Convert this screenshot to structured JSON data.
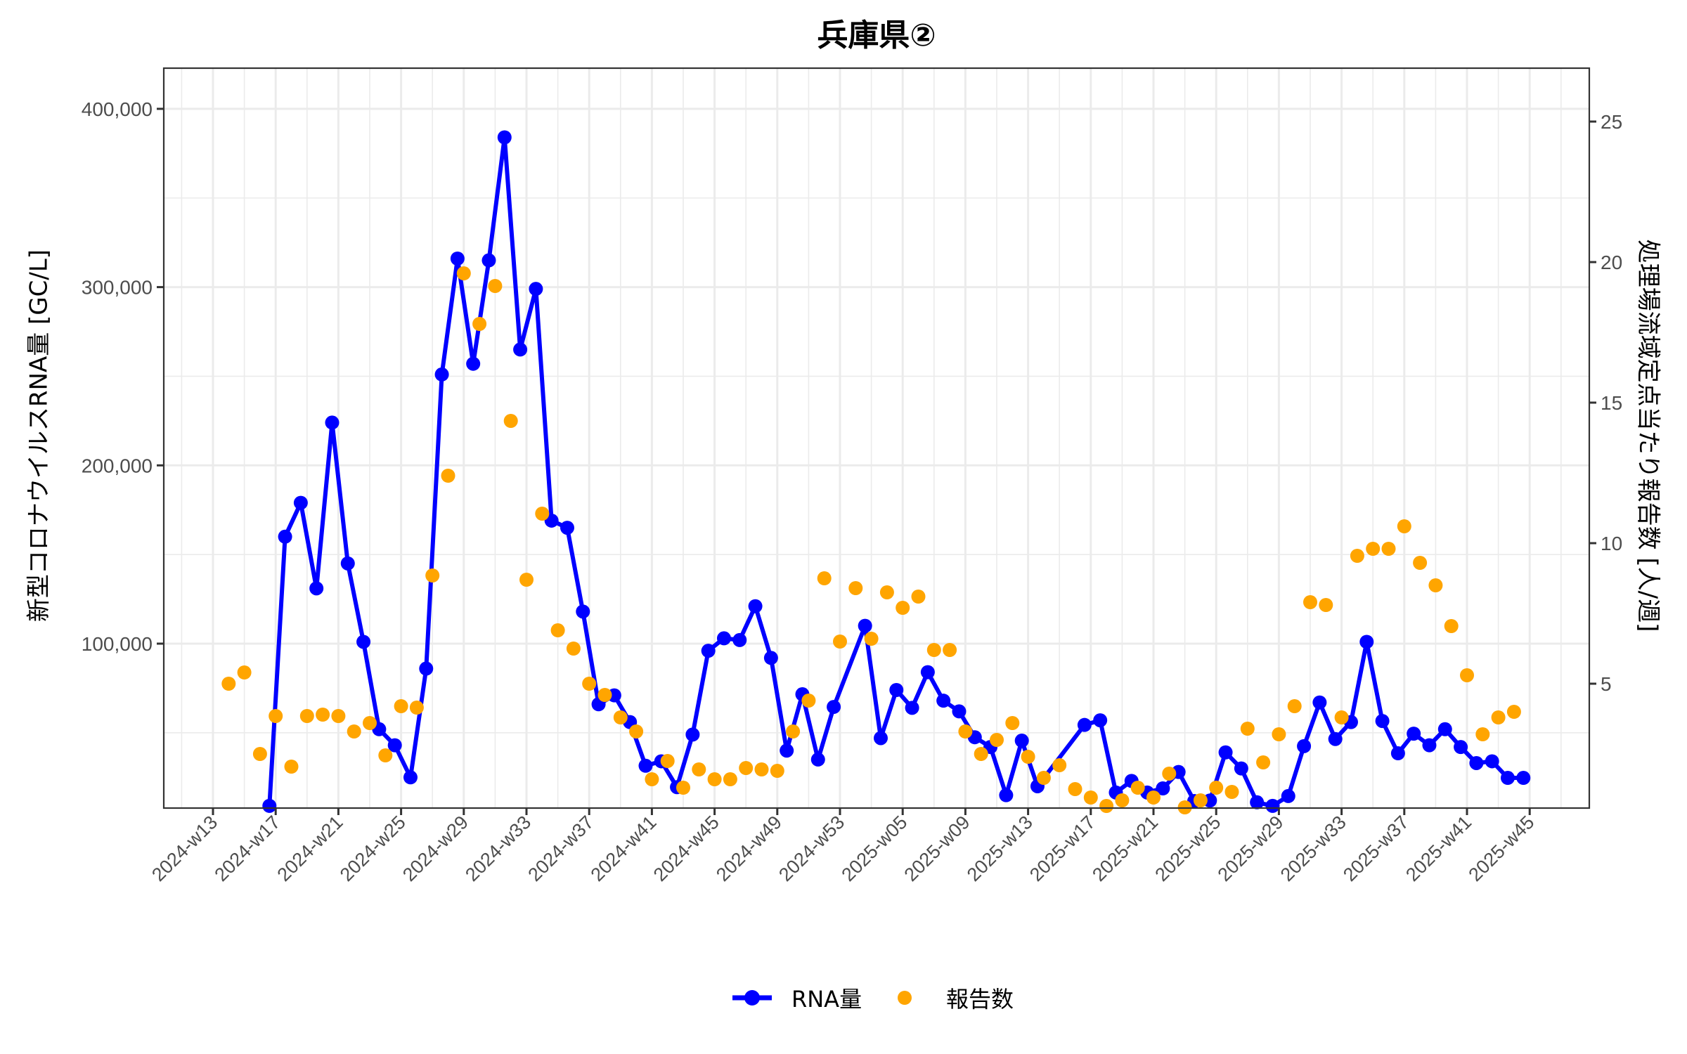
{
  "chart": {
    "title": "兵庫県②",
    "ylabel_left": "新型コロナウイルスRNA量 [GC/L]",
    "ylabel_right": "処理場流域定点当たり報告数 [人/週]",
    "legend": [
      {
        "label": "RNA量",
        "color": "#0000FF",
        "style": "line+point"
      },
      {
        "label": "報告数",
        "color": "#FFA500",
        "style": "point"
      }
    ]
  },
  "colors": {
    "rna": "#0000FF",
    "reports": "#FFA500",
    "grid": "#EBEBEB",
    "axis": "#333333",
    "tick_text": "#4D4D4D"
  },
  "chart_data": {
    "type": "line",
    "title": "兵庫県②",
    "xlabel": "",
    "ylabel": "新型コロナウイルスRNA量 [GC/L]",
    "ylabel_secondary": "処理場流域定点当たり報告数 [人/週]",
    "ylim": [
      8000,
      420000
    ],
    "ylim_secondary": [
      0.6,
      26.5
    ],
    "grid": true,
    "legend_position": "bottom",
    "x_tick_labels": [
      "2024-w13",
      "2024-w17",
      "2024-w21",
      "2024-w25",
      "2024-w29",
      "2024-w33",
      "2024-w37",
      "2024-w41",
      "2024-w45",
      "2024-w49",
      "2024-w53",
      "2025-w05",
      "2025-w09",
      "2025-w13",
      "2025-w17",
      "2025-w21",
      "2025-w25",
      "2025-w29",
      "2025-w33",
      "2025-w37",
      "2025-w41",
      "2025-w45"
    ],
    "y_ticks_left": [
      "100,000",
      "200,000",
      "300,000",
      "400,000"
    ],
    "y_ticks_left_values": [
      100000,
      200000,
      300000,
      400000
    ],
    "y_ticks_right": [
      "5",
      "10",
      "15",
      "20",
      "25"
    ],
    "y_ticks_right_values": [
      5,
      10,
      15,
      20,
      25
    ],
    "x_index_note": "x is week index: 0 = 2024-w13, 40 = 2024-w53, 44 = 2025-w05, 84 = 2025-w45",
    "series": [
      {
        "name": "RNA量",
        "axis": "left",
        "type": "line+point",
        "x": [
          3.6,
          4.6,
          5.6,
          6.6,
          7.6,
          8.6,
          9.6,
          10.6,
          11.6,
          12.6,
          13.6,
          14.6,
          15.6,
          16.6,
          17.6,
          18.6,
          19.6,
          20.6,
          21.6,
          22.6,
          23.6,
          24.6,
          25.6,
          26.6,
          27.6,
          28.6,
          29.6,
          30.6,
          31.6,
          32.6,
          33.6,
          34.6,
          35.6,
          36.6,
          37.6,
          38.6,
          39.6,
          41.6,
          42.6,
          43.6,
          44.6,
          45.6,
          46.6,
          47.6,
          48.6,
          49.6,
          50.6,
          51.6,
          52.6,
          55.6,
          56.6,
          57.6,
          58.6,
          59.6,
          60.6,
          61.6,
          62.6,
          63.6,
          64.6,
          65.6,
          66.6,
          67.6,
          68.6,
          69.6,
          70.6,
          71.6,
          72.6,
          73.6,
          74.6,
          75.6,
          76.6,
          77.6,
          78.6,
          79.6,
          80.6,
          81.6,
          82.6,
          83.6
        ],
        "values": [
          9000,
          160000,
          179000,
          131000,
          224000,
          145000,
          101000,
          52000,
          43000,
          25000,
          86000,
          251000,
          316000,
          257000,
          315000,
          384000,
          265000,
          299000,
          169000,
          165000,
          118000,
          66000,
          71000,
          56000,
          31500,
          34000,
          19500,
          49000,
          96000,
          103000,
          102000,
          121000,
          92000,
          40000,
          71600,
          35000,
          64500,
          110000,
          47000,
          74000,
          64000,
          84000,
          68000,
          62000,
          47500,
          42000,
          15000,
          45600,
          20000,
          54400,
          57000,
          16500,
          23000,
          16500,
          18800,
          28000,
          11700,
          12000,
          39000,
          30000,
          11000,
          9000,
          14500,
          42500,
          67000,
          46500,
          56000,
          101000,
          56600,
          38500,
          49500,
          43000,
          52000,
          42000,
          33000,
          34000,
          24700,
          24700
        ]
      },
      {
        "name": "報告数",
        "axis": "right",
        "type": "point",
        "x": [
          1,
          2,
          3,
          4,
          5,
          6,
          7,
          8,
          9,
          10,
          11,
          12,
          13,
          14,
          15,
          16,
          17,
          18,
          19,
          20,
          21,
          22,
          23,
          24,
          25,
          26,
          27,
          28,
          29,
          30,
          31,
          32,
          33,
          34,
          35,
          36,
          37,
          38,
          39,
          40,
          41,
          42,
          43,
          44,
          45,
          46,
          47,
          48,
          49,
          50,
          51,
          52,
          53,
          54,
          55,
          56,
          57,
          58,
          59,
          60,
          61,
          62,
          63,
          64,
          65,
          66,
          67,
          68,
          69,
          70,
          71,
          72,
          73,
          74,
          75,
          76,
          77,
          78,
          79,
          80,
          81,
          82,
          83
        ],
        "values": [
          5.0,
          5.4,
          2.5,
          3.85,
          2.05,
          3.85,
          3.9,
          3.85,
          3.3,
          3.6,
          2.45,
          4.2,
          4.15,
          8.85,
          12.4,
          19.6,
          17.8,
          19.15,
          14.35,
          8.7,
          11.05,
          6.9,
          6.25,
          5.0,
          4.6,
          3.8,
          3.3,
          1.6,
          2.25,
          1.3,
          1.95,
          1.6,
          1.6,
          2.0,
          1.95,
          1.9,
          3.3,
          4.4,
          8.75,
          6.5,
          8.4,
          6.6,
          8.25,
          7.7,
          8.1,
          6.2,
          6.2,
          3.3,
          2.5,
          3.0,
          3.6,
          2.4,
          1.65,
          2.1,
          1.25,
          0.95,
          0.65,
          0.85,
          1.3,
          0.95,
          1.8,
          0.6,
          0.85,
          1.3,
          1.15,
          3.4,
          2.2,
          3.2,
          4.2,
          7.9,
          7.8,
          3.8,
          9.55,
          9.8,
          9.8,
          10.6,
          9.3,
          8.5,
          7.05,
          5.3,
          3.2,
          3.8,
          4.0
        ]
      }
    ]
  }
}
